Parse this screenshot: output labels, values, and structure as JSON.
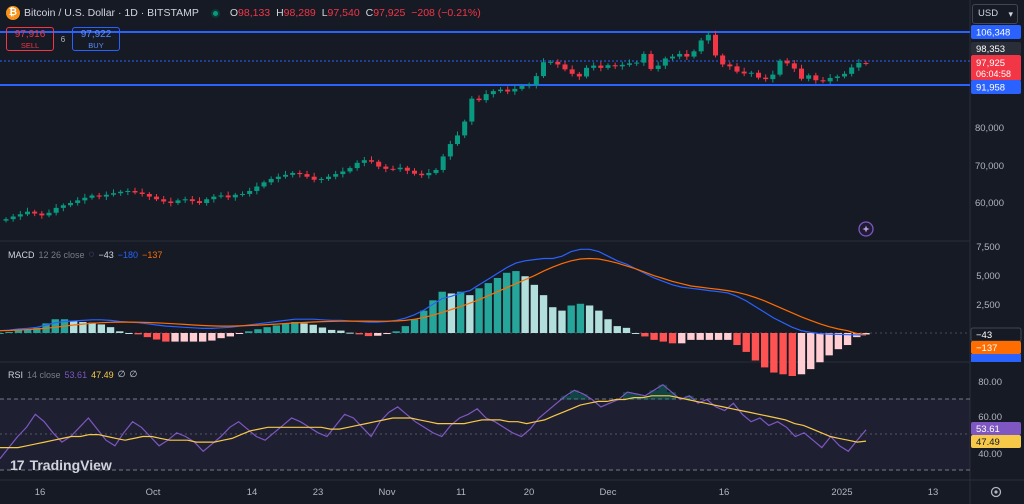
{
  "header": {
    "symbol_icon": "bitcoin-icon",
    "symbol_icon_glyph": "₿",
    "title": "Bitcoin / U.S. Dollar · 1D · BITSTAMP",
    "ohlc": [
      {
        "k": "O",
        "v": "98,133"
      },
      {
        "k": "H",
        "v": "98,289"
      },
      {
        "k": "L",
        "v": "97,540"
      },
      {
        "k": "C",
        "v": "97,925"
      },
      {
        "k": "",
        "v": "−208 (−0.21%)"
      }
    ]
  },
  "trade": {
    "sell_price": "97,916",
    "sell_label": "SELL",
    "spread": "6",
    "buy_price": "97,922",
    "buy_label": "BUY"
  },
  "currency": "USD",
  "price_axis": {
    "ticks": [
      "80,000",
      "70,000",
      "60,000"
    ],
    "level_labels": [
      "106,348",
      "98,353",
      "91,958"
    ],
    "current_price": "97,925",
    "countdown": "06:04:58"
  },
  "macd": {
    "name": "MACD",
    "params": "12 26 close",
    "values": [
      {
        "v": "−43",
        "color": "#d1d4dc"
      },
      {
        "v": "−180",
        "color": "#2962ff"
      },
      {
        "v": "−137",
        "color": "#ff6d00"
      }
    ],
    "axis_ticks": [
      "7,500",
      "5,000",
      "2,500"
    ],
    "badges": [
      "−43",
      "−137"
    ]
  },
  "rsi": {
    "name": "RSI",
    "params": "14 close",
    "values": [
      {
        "v": "53.61",
        "color": "#7e57c2"
      },
      {
        "v": "47.49",
        "color": "#f7c948"
      },
      {
        "v": "∅",
        "color": "#d1d4dc"
      },
      {
        "v": "∅",
        "color": "#d1d4dc"
      }
    ],
    "axis_ticks": [
      "80.00",
      "60.00",
      "40.00"
    ],
    "badges": [
      "53.61",
      "47.49"
    ]
  },
  "time_axis": [
    "16",
    "Oct",
    "14",
    "23",
    "Nov",
    "11",
    "20",
    "Dec",
    "16",
    "2025",
    "13"
  ],
  "logo": "TradingView",
  "colors": {
    "up": "#089981",
    "down": "#f23645",
    "level_line": "#2962ff",
    "macd": "#2962ff",
    "signal": "#ff6d00",
    "rsi": "#7e57c2",
    "rsi_ma": "#f7c948"
  },
  "chart_data": {
    "type": "candlestick",
    "interval": "1D",
    "y_range": [
      55000,
      110000
    ],
    "horizontal_levels": [
      106348,
      98353,
      91958
    ],
    "closes": [
      56500,
      57200,
      57800,
      58500,
      58000,
      57500,
      58200,
      59500,
      60200,
      60800,
      61500,
      62200,
      62800,
      62500,
      63000,
      63400,
      63800,
      64000,
      63600,
      63200,
      62500,
      61800,
      61200,
      60800,
      61500,
      61800,
      61300,
      60800,
      61800,
      62500,
      62800,
      62300,
      63000,
      63200,
      64000,
      65200,
      66300,
      67200,
      67800,
      68300,
      68800,
      68500,
      67800,
      67000,
      67200,
      67800,
      68500,
      69200,
      70100,
      71500,
      72200,
      71800,
      70500,
      69900,
      69800,
      70200,
      69400,
      68600,
      68200,
      68800,
      69600,
      73200,
      76500,
      78800,
      82500,
      88600,
      88200,
      89800,
      90600,
      91000,
      90500,
      91200,
      92000,
      92200,
      94600,
      98300,
      98400,
      97700,
      96400,
      95200,
      94500,
      96800,
      97400,
      96800,
      97500,
      97200,
      97600,
      98000,
      98200,
      100500,
      96500,
      97400,
      99300,
      99800,
      100500,
      99800,
      101200,
      104100,
      105600,
      100100,
      97700,
      97200,
      95800,
      95300,
      95500,
      94200,
      93800,
      95000,
      98700,
      98000,
      96600,
      93900,
      94800,
      93500,
      93200,
      94100,
      94500,
      95200,
      96900,
      98100,
      97925
    ],
    "macd": [
      200,
      250,
      350,
      400,
      500,
      700,
      900,
      1000,
      1050,
      1100,
      1150,
      1150,
      1100,
      1000,
      950,
      900,
      800,
      700,
      600,
      550,
      500,
      450,
      400,
      400,
      450,
      500,
      600,
      700,
      800,
      900,
      1000,
      1100,
      1200,
      1200,
      1200,
      1150,
      1100,
      1100,
      1050,
      1000,
      950,
      950,
      1000,
      1100,
      1300,
      1600,
      2000,
      2500,
      3000,
      3200,
      3500,
      3700,
      4200,
      4700,
      5200,
      5700,
      6100,
      6300,
      6400,
      6500,
      6500,
      6700,
      7100,
      7300,
      7300,
      7100,
      6700,
      6300,
      6000,
      5600,
      5200,
      4800,
      4500,
      4200,
      4000,
      3900,
      3800,
      3700,
      3600,
      3500,
      3200,
      2800,
      2300,
      1800,
      1300,
      900,
      500,
      200,
      50,
      -50,
      -100,
      -120,
      -150,
      -170,
      -180
    ],
    "signal": [
      200,
      220,
      260,
      300,
      350,
      420,
      500,
      600,
      700,
      780,
      850,
      900,
      930,
      950,
      950,
      940,
      920,
      890,
      850,
      800,
      750,
      700,
      650,
      620,
      600,
      600,
      620,
      650,
      690,
      730,
      780,
      830,
      880,
      920,
      960,
      990,
      1010,
      1030,
      1040,
      1040,
      1040,
      1030,
      1030,
      1050,
      1100,
      1200,
      1350,
      1550,
      1800,
      2050,
      2300,
      2600,
      2900,
      3250,
      3600,
      3950,
      4300,
      4650,
      5000,
      5400,
      5750,
      6050,
      6300,
      6450,
      6500,
      6450,
      6300,
      6100,
      5850,
      5600,
      5300,
      5000,
      4750,
      4500,
      4300,
      4100,
      4000,
      3900,
      3800,
      3700,
      3550,
      3350,
      3100,
      2800,
      2450,
      2100,
      1750,
      1400,
      1100,
      800,
      550,
      350,
      200,
      -50,
      -137
    ],
    "rsi": [
      38,
      44,
      50,
      55,
      62,
      58,
      52,
      47,
      50,
      55,
      60,
      54,
      48,
      45,
      52,
      58,
      55,
      50,
      45,
      48,
      52,
      50,
      47,
      42,
      46,
      50,
      55,
      58,
      54,
      50,
      48,
      52,
      56,
      60,
      58,
      55,
      52,
      50,
      56,
      62,
      60,
      55,
      50,
      58,
      63,
      66,
      62,
      58,
      55,
      52,
      50,
      56,
      60,
      62,
      65,
      60,
      58,
      55,
      52,
      50,
      54,
      60,
      64,
      68,
      72,
      75,
      73,
      70,
      66,
      68,
      70,
      74,
      73,
      72,
      75,
      78,
      74,
      70,
      72,
      68,
      70,
      66,
      64,
      68,
      62,
      58,
      60,
      56,
      58,
      55,
      50,
      52,
      48,
      44,
      50,
      45,
      42,
      48,
      53.61
    ],
    "rsi_ma": [
      44,
      44,
      44,
      45,
      46,
      47,
      48,
      49,
      50,
      50,
      51,
      51,
      50,
      49,
      48,
      49,
      50,
      50,
      49,
      48,
      48,
      48,
      47,
      47,
      47,
      48,
      49,
      51,
      53,
      54,
      55,
      55,
      55,
      55,
      55,
      55,
      55,
      54,
      54,
      55,
      56,
      57,
      58,
      59,
      60,
      60,
      60,
      59,
      58,
      57,
      57,
      57,
      57,
      58,
      59,
      59,
      59,
      58,
      58,
      57,
      58,
      59,
      61,
      63,
      65,
      67,
      68,
      69,
      69,
      70,
      70,
      71,
      71,
      72,
      72,
      72,
      71,
      70,
      69,
      68,
      67,
      66,
      65,
      64,
      63,
      62,
      61,
      60,
      59,
      57,
      56,
      54,
      52,
      50,
      49,
      48,
      47,
      47.49
    ],
    "rsi_bands": [
      70,
      50,
      30
    ]
  }
}
